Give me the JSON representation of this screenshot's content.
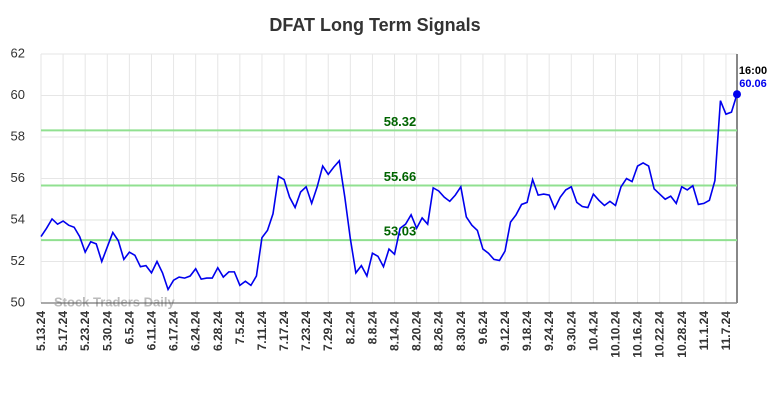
{
  "chart_data": {
    "type": "line",
    "title": "DFAT Long Term Signals",
    "categories": [
      "5.13.24",
      null,
      null,
      null,
      "5.17.24",
      null,
      null,
      null,
      "5.23.24",
      null,
      null,
      null,
      "5.30.24",
      null,
      null,
      null,
      "6.5.24",
      null,
      null,
      null,
      "6.11.24",
      null,
      null,
      null,
      "6.17.24",
      null,
      null,
      null,
      "6.24.24",
      null,
      null,
      null,
      "6.28.24",
      null,
      null,
      null,
      "7.5.24",
      null,
      null,
      null,
      "7.11.24",
      null,
      null,
      null,
      "7.17.24",
      null,
      null,
      null,
      "7.23.24",
      null,
      null,
      null,
      "7.29.24",
      null,
      null,
      null,
      "8.2.24",
      null,
      null,
      null,
      "8.8.24",
      null,
      null,
      null,
      "8.14.24",
      null,
      null,
      null,
      "8.20.24",
      null,
      null,
      null,
      "8.26.24",
      null,
      null,
      null,
      "8.30.24",
      null,
      null,
      null,
      "9.6.24",
      null,
      null,
      null,
      "9.12.24",
      null,
      null,
      null,
      "9.18.24",
      null,
      null,
      null,
      "9.24.24",
      null,
      null,
      null,
      "9.30.24",
      null,
      null,
      null,
      "10.4.24",
      null,
      null,
      null,
      "10.10.24",
      null,
      null,
      null,
      "10.16.24",
      null,
      null,
      null,
      "10.22.24",
      null,
      null,
      null,
      "10.28.24",
      null,
      null,
      null,
      "11.1.24",
      null,
      null,
      null,
      "11.7.24",
      null,
      null
    ],
    "values": [
      53.2,
      53.6,
      54.05,
      53.8,
      53.95,
      53.75,
      53.65,
      53.2,
      52.45,
      52.95,
      52.85,
      52.0,
      52.7,
      53.4,
      53.0,
      52.1,
      52.45,
      52.3,
      51.75,
      51.8,
      51.45,
      52.0,
      51.45,
      50.65,
      51.1,
      51.25,
      51.2,
      51.3,
      51.65,
      51.15,
      51.2,
      51.2,
      51.7,
      51.25,
      51.5,
      51.5,
      50.85,
      51.05,
      50.85,
      51.3,
      53.15,
      53.5,
      54.3,
      56.1,
      55.95,
      55.1,
      54.6,
      55.35,
      55.6,
      54.8,
      55.6,
      56.6,
      56.2,
      56.55,
      56.85,
      55.1,
      53.1,
      51.45,
      51.8,
      51.3,
      52.4,
      52.25,
      51.75,
      52.6,
      52.35,
      53.6,
      53.8,
      54.25,
      53.6,
      54.1,
      53.8,
      55.55,
      55.4,
      55.1,
      54.9,
      55.2,
      55.6,
      54.15,
      53.75,
      53.5,
      52.6,
      52.4,
      52.1,
      52.05,
      52.5,
      53.9,
      54.25,
      54.75,
      54.85,
      55.95,
      55.2,
      55.25,
      55.2,
      54.55,
      55.1,
      55.45,
      55.6,
      54.85,
      54.65,
      54.6,
      55.25,
      54.95,
      54.7,
      54.9,
      54.7,
      55.6,
      56.0,
      55.85,
      56.6,
      56.75,
      56.6,
      55.5,
      55.25,
      55.0,
      55.15,
      54.8,
      55.6,
      55.45,
      55.65,
      54.75,
      54.8,
      54.95,
      55.9,
      59.75,
      59.1,
      59.2,
      60.06
    ],
    "color": "#0000ee",
    "ylim": [
      50,
      62
    ],
    "yticks": [
      50,
      52,
      54,
      56,
      58,
      60,
      62
    ],
    "grid": true,
    "levels": [
      58.32,
      55.66,
      53.03
    ],
    "level_color": "#90e090",
    "level_label_color": "#006400",
    "last_time": "16:00",
    "watermark": "Stock Traders Daily"
  }
}
